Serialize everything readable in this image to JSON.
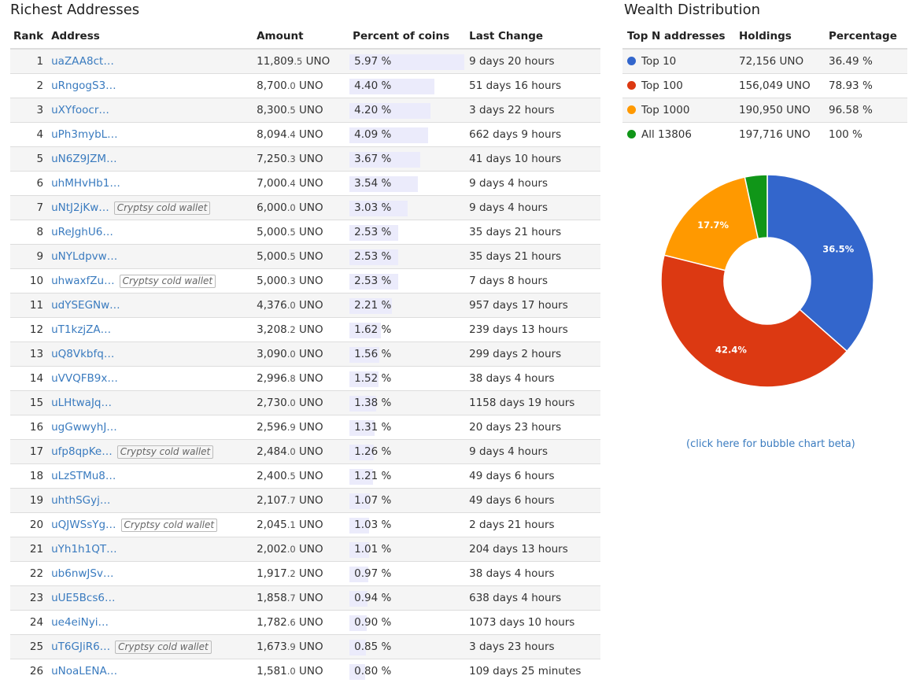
{
  "left": {
    "title": "Richest Addresses",
    "headers": {
      "rank": "Rank",
      "address": "Address",
      "amount": "Amount",
      "percent": "Percent of coins",
      "last_change": "Last Change"
    },
    "rows": [
      {
        "rank": "1",
        "address": "uaZAA8ct…",
        "tag": "",
        "amount_int": "11,809",
        "amount_dec": ".5",
        "unit": " UNO",
        "percent": "5.97 %",
        "pct": 5.97,
        "last_change": "9 days 20 hours"
      },
      {
        "rank": "2",
        "address": "uRngogS3…",
        "tag": "",
        "amount_int": "8,700",
        "amount_dec": ".0",
        "unit": " UNO",
        "percent": "4.40 %",
        "pct": 4.4,
        "last_change": "51 days 16 hours"
      },
      {
        "rank": "3",
        "address": "uXYfoocr…",
        "tag": "",
        "amount_int": "8,300",
        "amount_dec": ".5",
        "unit": " UNO",
        "percent": "4.20 %",
        "pct": 4.2,
        "last_change": "3 days 22 hours"
      },
      {
        "rank": "4",
        "address": "uPh3mybL…",
        "tag": "",
        "amount_int": "8,094",
        "amount_dec": ".4",
        "unit": " UNO",
        "percent": "4.09 %",
        "pct": 4.09,
        "last_change": "662 days 9 hours"
      },
      {
        "rank": "5",
        "address": "uN6Z9JZM…",
        "tag": "",
        "amount_int": "7,250",
        "amount_dec": ".3",
        "unit": " UNO",
        "percent": "3.67 %",
        "pct": 3.67,
        "last_change": "41 days 10 hours"
      },
      {
        "rank": "6",
        "address": "uhMHvHb1…",
        "tag": "",
        "amount_int": "7,000",
        "amount_dec": ".4",
        "unit": " UNO",
        "percent": "3.54 %",
        "pct": 3.54,
        "last_change": "9 days 4 hours"
      },
      {
        "rank": "7",
        "address": "uNtJ2jKw…",
        "tag": "Cryptsy cold wallet",
        "amount_int": "6,000",
        "amount_dec": ".0",
        "unit": " UNO",
        "percent": "3.03 %",
        "pct": 3.03,
        "last_change": "9 days 4 hours"
      },
      {
        "rank": "8",
        "address": "uReJghU6…",
        "tag": "",
        "amount_int": "5,000",
        "amount_dec": ".5",
        "unit": " UNO",
        "percent": "2.53 %",
        "pct": 2.53,
        "last_change": "35 days 21 hours"
      },
      {
        "rank": "9",
        "address": "uNYLdpvw…",
        "tag": "",
        "amount_int": "5,000",
        "amount_dec": ".5",
        "unit": " UNO",
        "percent": "2.53 %",
        "pct": 2.53,
        "last_change": "35 days 21 hours"
      },
      {
        "rank": "10",
        "address": "uhwaxfZu…",
        "tag": "Cryptsy cold wallet",
        "amount_int": "5,000",
        "amount_dec": ".3",
        "unit": " UNO",
        "percent": "2.53 %",
        "pct": 2.53,
        "last_change": "7 days 8 hours"
      },
      {
        "rank": "11",
        "address": "udYSEGNw…",
        "tag": "",
        "amount_int": "4,376",
        "amount_dec": ".0",
        "unit": " UNO",
        "percent": "2.21 %",
        "pct": 2.21,
        "last_change": "957 days 17 hours"
      },
      {
        "rank": "12",
        "address": "uT1kzjZA…",
        "tag": "",
        "amount_int": "3,208",
        "amount_dec": ".2",
        "unit": " UNO",
        "percent": "1.62 %",
        "pct": 1.62,
        "last_change": "239 days 13 hours"
      },
      {
        "rank": "13",
        "address": "uQ8Vkbfq…",
        "tag": "",
        "amount_int": "3,090",
        "amount_dec": ".0",
        "unit": " UNO",
        "percent": "1.56 %",
        "pct": 1.56,
        "last_change": "299 days 2 hours"
      },
      {
        "rank": "14",
        "address": "uVVQFB9x…",
        "tag": "",
        "amount_int": "2,996",
        "amount_dec": ".8",
        "unit": " UNO",
        "percent": "1.52 %",
        "pct": 1.52,
        "last_change": "38 days 4 hours"
      },
      {
        "rank": "15",
        "address": "uLHtwaJq…",
        "tag": "",
        "amount_int": "2,730",
        "amount_dec": ".0",
        "unit": " UNO",
        "percent": "1.38 %",
        "pct": 1.38,
        "last_change": "1158 days 19 hours"
      },
      {
        "rank": "16",
        "address": "ugGwwyhJ…",
        "tag": "",
        "amount_int": "2,596",
        "amount_dec": ".9",
        "unit": " UNO",
        "percent": "1.31 %",
        "pct": 1.31,
        "last_change": "20 days 23 hours"
      },
      {
        "rank": "17",
        "address": "ufp8qpKe…",
        "tag": "Cryptsy cold wallet",
        "amount_int": "2,484",
        "amount_dec": ".0",
        "unit": " UNO",
        "percent": "1.26 %",
        "pct": 1.26,
        "last_change": "9 days 4 hours"
      },
      {
        "rank": "18",
        "address": "uLzSTMu8…",
        "tag": "",
        "amount_int": "2,400",
        "amount_dec": ".5",
        "unit": " UNO",
        "percent": "1.21 %",
        "pct": 1.21,
        "last_change": "49 days 6 hours"
      },
      {
        "rank": "19",
        "address": "uhthSGyj…",
        "tag": "",
        "amount_int": "2,107",
        "amount_dec": ".7",
        "unit": " UNO",
        "percent": "1.07 %",
        "pct": 1.07,
        "last_change": "49 days 6 hours"
      },
      {
        "rank": "20",
        "address": "uQJWSsYg…",
        "tag": "Cryptsy cold wallet",
        "amount_int": "2,045",
        "amount_dec": ".1",
        "unit": " UNO",
        "percent": "1.03 %",
        "pct": 1.03,
        "last_change": "2 days 21 hours"
      },
      {
        "rank": "21",
        "address": "uYh1h1QT…",
        "tag": "",
        "amount_int": "2,002",
        "amount_dec": ".0",
        "unit": " UNO",
        "percent": "1.01 %",
        "pct": 1.01,
        "last_change": "204 days 13 hours"
      },
      {
        "rank": "22",
        "address": "ub6nwJSv…",
        "tag": "",
        "amount_int": "1,917",
        "amount_dec": ".2",
        "unit": " UNO",
        "percent": "0.97 %",
        "pct": 0.97,
        "last_change": "38 days 4 hours"
      },
      {
        "rank": "23",
        "address": "uUE5Bcs6…",
        "tag": "",
        "amount_int": "1,858",
        "amount_dec": ".7",
        "unit": " UNO",
        "percent": "0.94 %",
        "pct": 0.94,
        "last_change": "638 days 4 hours"
      },
      {
        "rank": "24",
        "address": "ue4eiNyi…",
        "tag": "",
        "amount_int": "1,782",
        "amount_dec": ".6",
        "unit": " UNO",
        "percent": "0.90 %",
        "pct": 0.9,
        "last_change": "1073 days 10 hours"
      },
      {
        "rank": "25",
        "address": "uT6GJiR6…",
        "tag": "Cryptsy cold wallet",
        "amount_int": "1,673",
        "amount_dec": ".9",
        "unit": " UNO",
        "percent": "0.85 %",
        "pct": 0.85,
        "last_change": "3 days 23 hours"
      },
      {
        "rank": "26",
        "address": "uNoaLENA…",
        "tag": "",
        "amount_int": "1,581",
        "amount_dec": ".0",
        "unit": " UNO",
        "percent": "0.80 %",
        "pct": 0.8,
        "last_change": "109 days 25 minutes"
      }
    ]
  },
  "right": {
    "title": "Wealth Distribution",
    "headers": {
      "top_n": "Top N addresses",
      "holdings": "Holdings",
      "percentage": "Percentage"
    },
    "rows": [
      {
        "label": "Top 10",
        "holdings": "72,156 UNO",
        "percentage": "36.49 %",
        "color": "#3366cc"
      },
      {
        "label": "Top 100",
        "holdings": "156,049 UNO",
        "percentage": "78.93 %",
        "color": "#dc3912"
      },
      {
        "label": "Top 1000",
        "holdings": "190,950 UNO",
        "percentage": "96.58 %",
        "color": "#ff9900"
      },
      {
        "label": "All 13806",
        "holdings": "197,716 UNO",
        "percentage": "100 %",
        "color": "#109618"
      }
    ],
    "bubble_link": "(click here for bubble chart beta)"
  },
  "chart_data": {
    "type": "pie",
    "donut": true,
    "slices": [
      {
        "value": 36.5,
        "label": "36.5%",
        "color": "#3366cc"
      },
      {
        "value": 42.4,
        "label": "42.4%",
        "color": "#dc3912"
      },
      {
        "value": 17.7,
        "label": "17.7%",
        "color": "#ff9900"
      },
      {
        "value": 3.4,
        "label": "",
        "color": "#109618"
      }
    ]
  }
}
